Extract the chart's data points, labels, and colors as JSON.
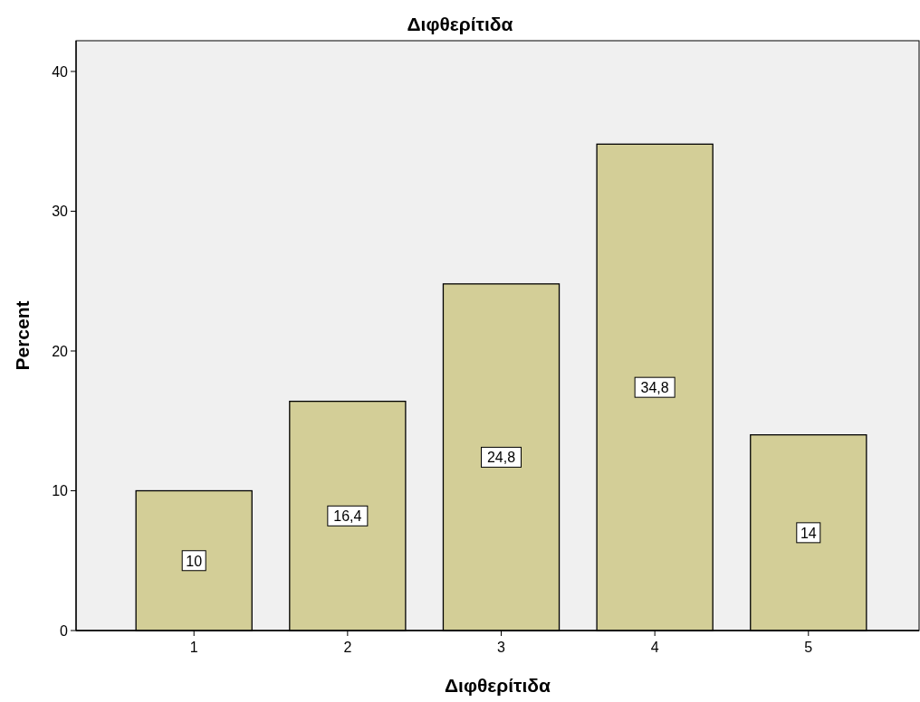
{
  "chart_data": {
    "type": "bar",
    "title": "Διφθερίτιδα",
    "xlabel": "Διφθερίτιδα",
    "ylabel": "Percent",
    "categories": [
      "1",
      "2",
      "3",
      "4",
      "5"
    ],
    "values": [
      10,
      16.4,
      24.8,
      34.8,
      14
    ],
    "value_labels": [
      "10",
      "16,4",
      "24,8",
      "34,8",
      "14"
    ],
    "color": "#d3ce97",
    "ylim": [
      0,
      42.2
    ],
    "yticks": [
      0,
      10,
      20,
      30,
      40
    ],
    "grid": false
  }
}
